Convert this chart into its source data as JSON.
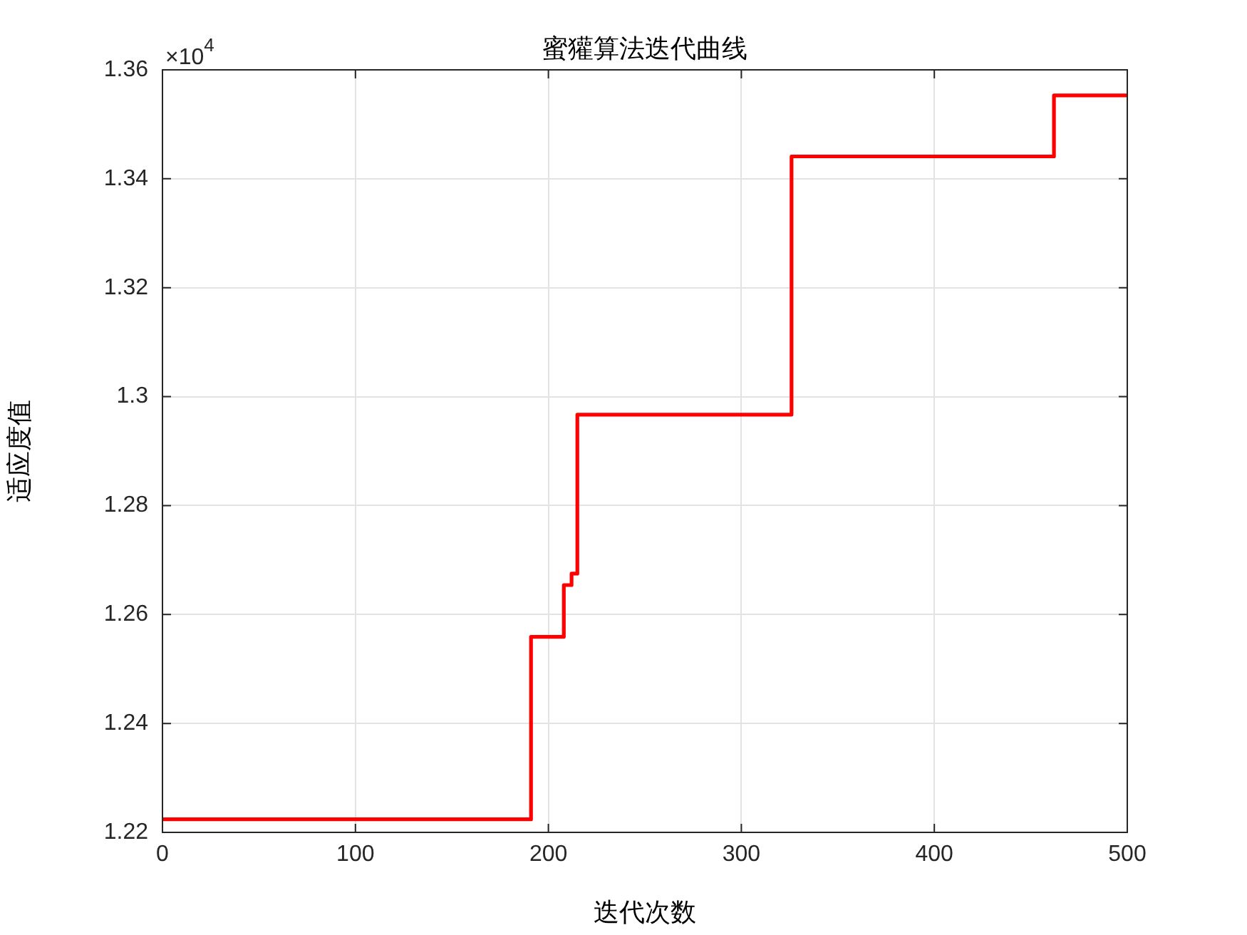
{
  "chart_data": {
    "type": "step",
    "title": "蜜獾算法迭代曲线",
    "xlabel": "迭代次数",
    "ylabel": "适应度值",
    "annotations": [
      "×10$^{4}$"
    ],
    "series": [
      {
        "x": [
          0,
          191,
          208,
          212,
          215,
          326,
          462,
          500
        ],
        "values": [
          1.2224,
          1.2559,
          1.2654,
          1.2675,
          1.2967,
          1.3441,
          1.3553,
          1.3553
        ],
        "color": "#ff0000"
      }
    ],
    "xlim": [
      0,
      500
    ],
    "xticks": [
      0,
      100,
      200,
      300,
      400,
      500
    ],
    "ylim": [
      1.22,
      1.36
    ],
    "yticks": [
      1.22,
      1.24,
      1.26,
      1.28,
      1.3,
      1.32,
      1.34,
      1.36
    ],
    "grid": true
  }
}
